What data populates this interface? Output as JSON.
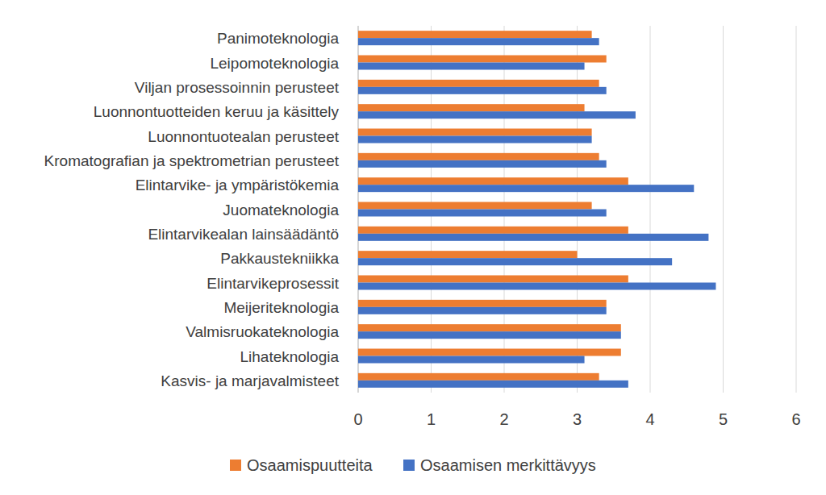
{
  "chart_data": {
    "type": "bar",
    "orientation": "horizontal",
    "categories": [
      "Panimoteknologia",
      "Leipomoteknologia",
      "Viljan prosessoinnin perusteet",
      "Luonnontuotteiden keruu ja käsittely",
      "Luonnontuotealan perusteet",
      "Kromatografian ja spektrometrian perusteet",
      "Elintarvike- ja ympäristökemia",
      "Juomateknologia",
      "Elintarvikealan lainsäädäntö",
      "Pakkaustekniikka",
      "Elintarvikeprosessit",
      "Meijeriteknologia",
      "Valmisruokateknologia",
      "Lihateknologia",
      "Kasvis- ja marjavalmisteet"
    ],
    "series": [
      {
        "name": "Osaamispuutteita",
        "color": "#ed7d31",
        "values": [
          3.2,
          3.4,
          3.3,
          3.1,
          3.2,
          3.3,
          3.7,
          3.2,
          3.7,
          3.0,
          3.7,
          3.4,
          3.6,
          3.6,
          3.3
        ]
      },
      {
        "name": "Osaamisen merkittävyys",
        "color": "#4472c4",
        "values": [
          3.3,
          3.1,
          3.4,
          3.8,
          3.2,
          3.4,
          4.6,
          3.4,
          4.8,
          4.3,
          4.9,
          3.4,
          3.6,
          3.1,
          3.7
        ]
      }
    ],
    "xlim": [
      0,
      6
    ],
    "xticks": [
      0,
      1,
      2,
      3,
      4,
      5,
      6
    ],
    "grid": true,
    "legend": "bottom"
  }
}
